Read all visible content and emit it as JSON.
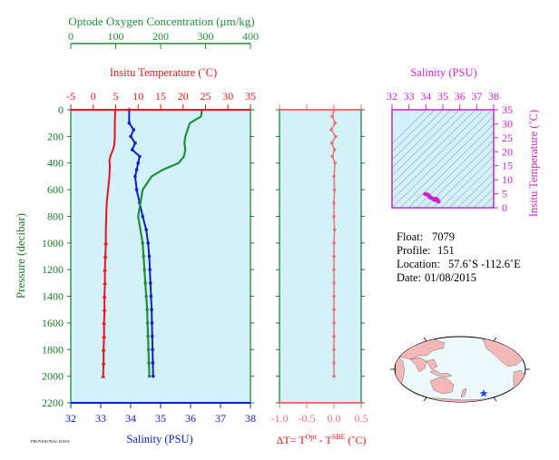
{
  "colors": {
    "oxygen": "#1f8f3a",
    "temperature": "#e8141e",
    "salinity": "#1020c8",
    "delta_t": "#f07070",
    "ts_panel": "#cc22cc",
    "pressure_axis": "#1a7a2a",
    "plot_bg": "#d3f1f9",
    "land": "#f4b8b8",
    "ocean": "#e6f6fb"
  },
  "chart_data": [
    {
      "type": "line",
      "panel": "profiles",
      "pressure_axis": {
        "label": "Pressure (decibar)",
        "ticks": [
          0,
          200,
          400,
          600,
          800,
          1000,
          1200,
          1400,
          1600,
          1800,
          2000,
          2200
        ],
        "range": [
          0,
          2200
        ],
        "inverted": true
      },
      "oxygen_axis": {
        "label": "Optode Oxygen Concentration (μm/kg)",
        "ticks": [
          0,
          100,
          200,
          300,
          400
        ],
        "range": [
          0,
          400
        ],
        "position": "top"
      },
      "temperature_axis": {
        "label": "Insitu Temperature (˚C)",
        "ticks": [
          -5,
          0,
          5,
          10,
          15,
          20,
          25,
          30,
          35
        ],
        "range": [
          -5,
          35
        ],
        "position": "top"
      },
      "salinity_axis": {
        "label": "Salinity (PSU)",
        "ticks": [
          32,
          33,
          34,
          35,
          36,
          37,
          38
        ],
        "range": [
          32,
          38
        ],
        "position": "bottom"
      },
      "series": [
        {
          "key": "temperature",
          "pressure": [
            0,
            100,
            200,
            260,
            300,
            340,
            380,
            420,
            500,
            600,
            700,
            800,
            900,
            1000,
            1100,
            1200,
            1300,
            1400,
            1500,
            1600,
            1700,
            1800,
            1900,
            2000
          ],
          "values": [
            4.9,
            4.8,
            4.8,
            4.7,
            4.4,
            3.9,
            3.6,
            3.7,
            3.6,
            3.3,
            3.0,
            2.9,
            2.8,
            2.8,
            2.7,
            2.6,
            2.6,
            2.5,
            2.5,
            2.4,
            2.4,
            2.3,
            2.3,
            2.2
          ]
        },
        {
          "key": "salinity",
          "pressure": [
            0,
            100,
            150,
            200,
            250,
            300,
            350,
            400,
            450,
            500,
            600,
            700,
            800,
            900,
            1000,
            1100,
            1200,
            1300,
            1400,
            1500,
            1600,
            1700,
            1800,
            1900,
            2000
          ],
          "values": [
            33.95,
            33.95,
            34.1,
            34.0,
            34.15,
            34.05,
            34.3,
            34.25,
            34.2,
            34.15,
            34.2,
            34.3,
            34.4,
            34.52,
            34.58,
            34.62,
            34.64,
            34.66,
            34.68,
            34.7,
            34.71,
            34.72,
            34.73,
            34.74,
            34.75
          ]
        },
        {
          "key": "oxygen",
          "pressure": [
            0,
            50,
            100,
            200,
            250,
            300,
            350,
            400,
            450,
            500,
            550,
            600,
            700,
            800,
            900,
            1000,
            1100,
            1200,
            1300,
            1400,
            1500,
            1600,
            1700,
            1800,
            1900,
            2000
          ],
          "values": [
            292,
            290,
            265,
            255,
            253,
            255,
            252,
            240,
            205,
            180,
            170,
            160,
            155,
            150,
            155,
            160,
            162,
            164,
            166,
            168,
            170,
            171,
            172,
            173,
            174,
            175
          ]
        }
      ]
    },
    {
      "type": "line",
      "panel": "delta_t",
      "x_axis": {
        "label_main": "ΔT= T",
        "label_sup1": "Opt",
        "label_mid": " - T",
        "label_sup2": "SBE",
        "label_tail": " (˚C)",
        "ticks": [
          "-1.0",
          "-0.5",
          "0.0",
          "0.5"
        ],
        "range": [
          -1.0,
          0.5
        ]
      },
      "pressure": [
        0,
        50,
        100,
        150,
        200,
        250,
        300,
        350,
        400,
        500,
        600,
        700,
        800,
        900,
        1000,
        1100,
        1200,
        1300,
        1400,
        1500,
        1600,
        1700,
        1800,
        1900,
        2000
      ],
      "values": [
        0.0,
        -0.03,
        0.02,
        -0.05,
        0.03,
        -0.04,
        0.01,
        -0.03,
        0.02,
        0.0,
        0.01,
        0.0,
        0.0,
        0.01,
        0.0,
        0.0,
        0.0,
        0.0,
        0.0,
        0.0,
        0.0,
        0.0,
        0.0,
        0.0,
        0.0
      ]
    },
    {
      "type": "scatter",
      "panel": "ts_diagram",
      "x_axis": {
        "label": "Salinity (PSU)",
        "ticks": [
          32,
          33,
          34,
          35,
          36,
          37,
          38
        ],
        "range": [
          32,
          38
        ],
        "position": "top"
      },
      "y_axis": {
        "label": "Insitu Temperature (˚C)",
        "ticks": [
          0,
          5,
          10,
          15,
          20,
          25,
          30,
          35
        ],
        "range": [
          0,
          35
        ],
        "position": "right"
      },
      "points": [
        [
          33.95,
          4.9
        ],
        [
          34.0,
          4.8
        ],
        [
          34.1,
          4.7
        ],
        [
          34.15,
          4.4
        ],
        [
          34.2,
          3.9
        ],
        [
          34.3,
          3.6
        ],
        [
          34.25,
          3.7
        ],
        [
          34.4,
          3.3
        ],
        [
          34.5,
          3.0
        ],
        [
          34.58,
          2.8
        ],
        [
          34.64,
          2.6
        ],
        [
          34.7,
          2.5
        ],
        [
          34.73,
          2.4
        ],
        [
          34.75,
          2.2
        ],
        [
          34.6,
          3.2
        ],
        [
          34.5,
          2.8
        ],
        [
          34.2,
          4.2
        ],
        [
          34.68,
          2.9
        ]
      ]
    }
  ],
  "float_info": {
    "float_label": "Float:",
    "float_value": "7079",
    "profile_label": "Profile:",
    "profile_value": "151",
    "location_label": "Location:",
    "location_value": "57.6˚S  -112.6˚E",
    "date_label": "Date:",
    "date_value": "01/08/2015"
  },
  "footer_note": "PROVISIONAL DATA",
  "map": {
    "marker": "float-position-marker"
  }
}
